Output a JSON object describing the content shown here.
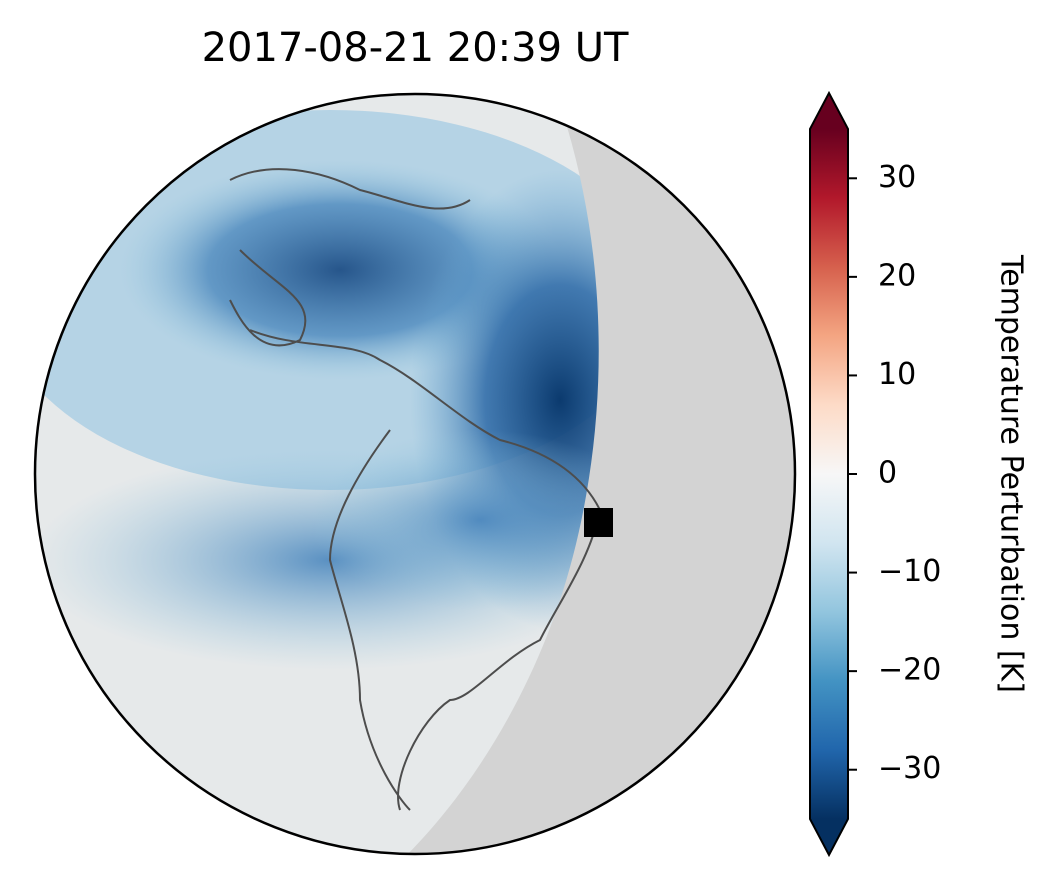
{
  "title": "2017-08-21  20:39 UT",
  "colorbar": {
    "label": "Temperature Perturbation [K]",
    "lim": [
      -35,
      35
    ],
    "ticks": [
      {
        "value": -30,
        "label": "−30"
      },
      {
        "value": -20,
        "label": "−20"
      },
      {
        "value": -10,
        "label": "−10"
      },
      0,
      10,
      20,
      30
    ],
    "colors": [
      "#053061",
      "#2166ac",
      "#4393c3",
      "#92c5de",
      "#d1e5f0",
      "#f7f7f7",
      "#fddbc7",
      "#f4a582",
      "#d6604d",
      "#b2182b",
      "#67001f"
    ]
  }
}
